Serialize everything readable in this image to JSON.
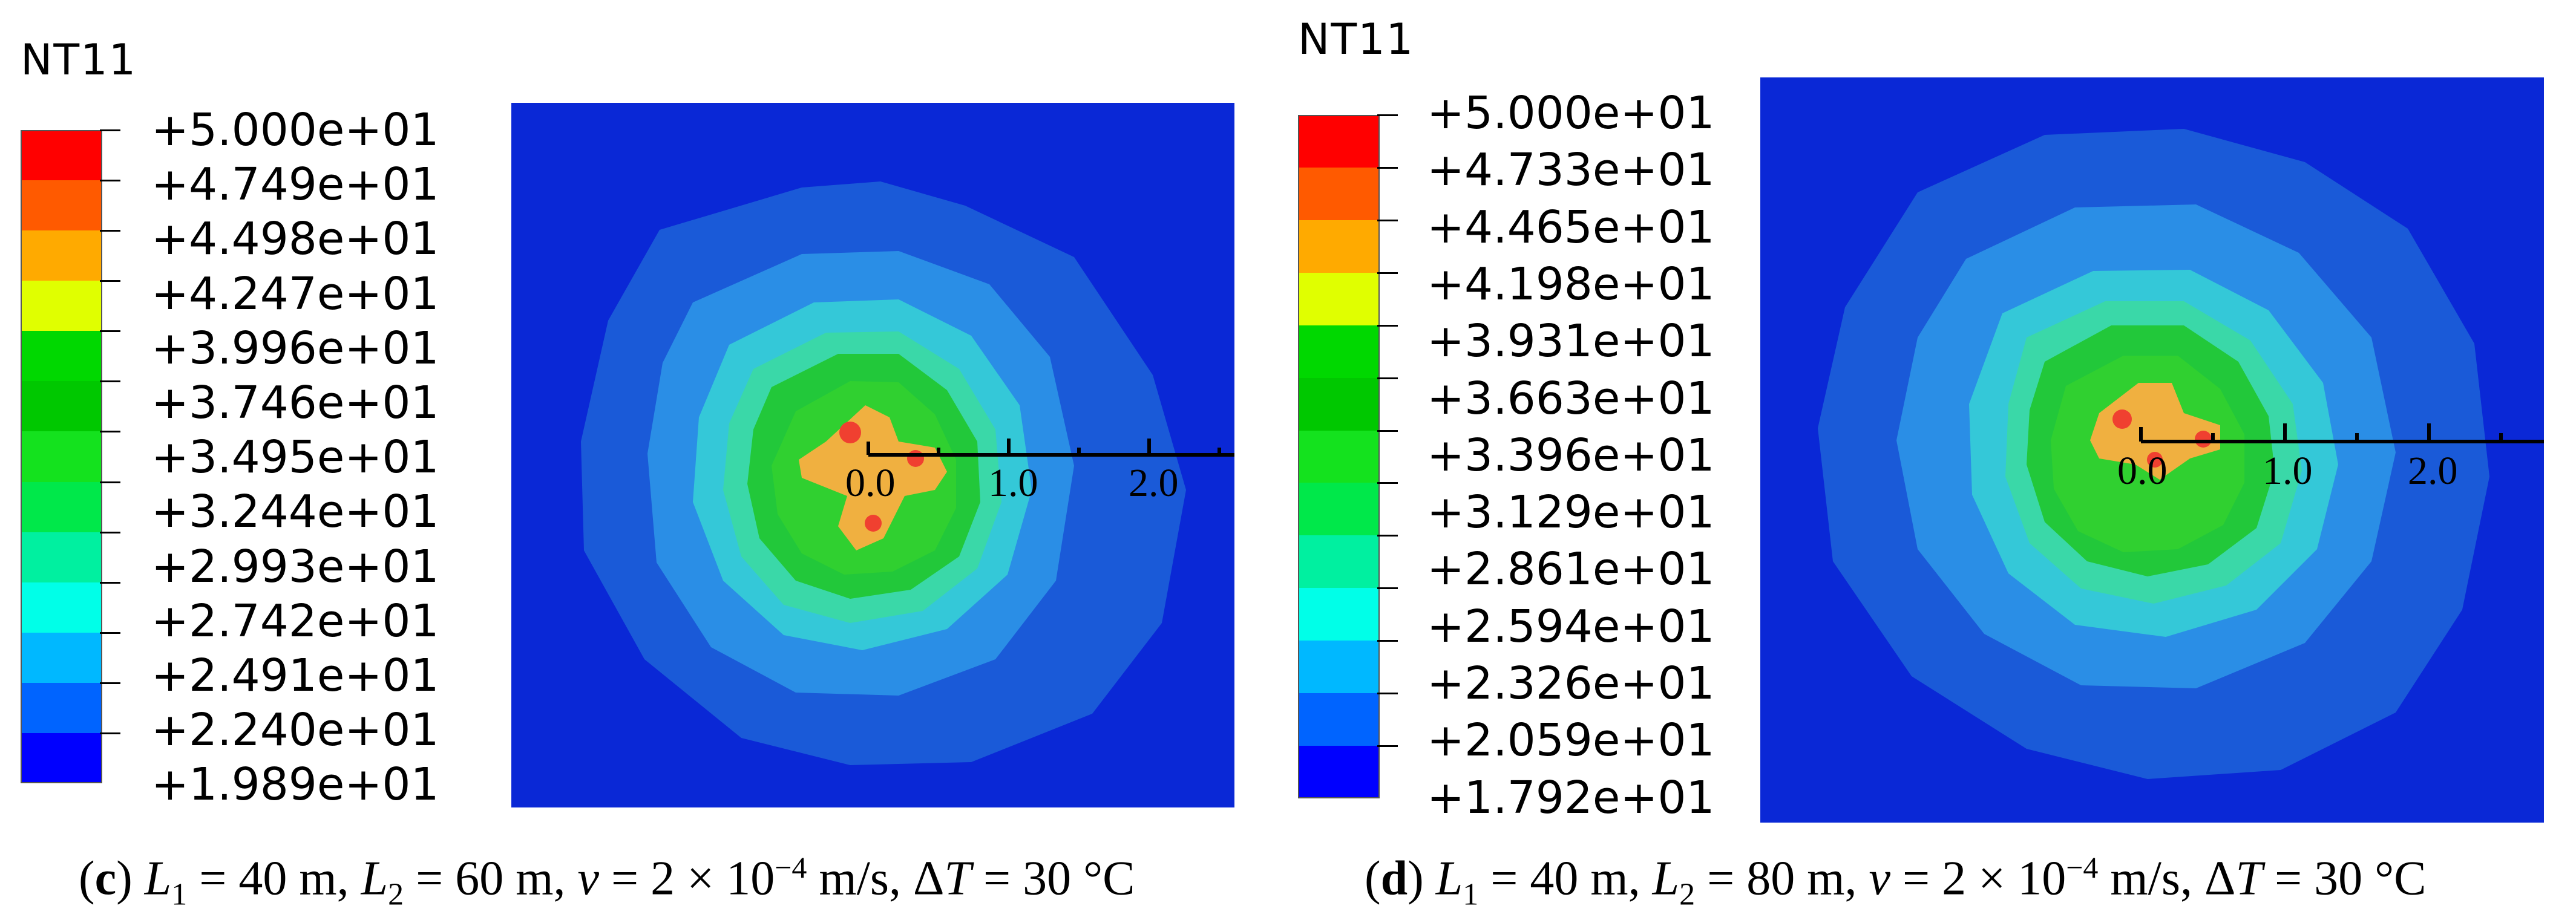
{
  "panels": [
    {
      "id": "c",
      "legend": {
        "title": "NT11",
        "colors": [
          "#ff0000",
          "#ff5a00",
          "#ffaa00",
          "#e0ff00",
          "#00d800",
          "#00c800",
          "#14e21e",
          "#00e84a",
          "#00f0a0",
          "#00ffe8",
          "#00b8ff",
          "#0064ff",
          "#0000ff"
        ],
        "levels": [
          "+5.000e+01",
          "+4.749e+01",
          "+4.498e+01",
          "+4.247e+01",
          "+3.996e+01",
          "+3.746e+01",
          "+3.495e+01",
          "+3.244e+01",
          "+2.993e+01",
          "+2.742e+01",
          "+2.491e+01",
          "+2.240e+01",
          "+1.989e+01"
        ]
      },
      "axis": {
        "ticks": [
          "0.0",
          "1.0",
          "2.0"
        ]
      },
      "caption": {
        "letter": "c",
        "L1_var": "L",
        "L1_sub": "1",
        "L1_text": " = 40 m, ",
        "L2_var": "L",
        "L2_sub": "2",
        "L2_text": " = 60 m, ",
        "v_var": "v",
        "v_text": " = 2 × 10",
        "v_exp": "−4",
        "v_unit": " m/s, Δ",
        "T_var": "T",
        "T_text": " = 30 °C"
      }
    },
    {
      "id": "d",
      "legend": {
        "title": "NT11",
        "colors": [
          "#ff0000",
          "#ff5a00",
          "#ffaa00",
          "#e0ff00",
          "#00d800",
          "#00c800",
          "#14e21e",
          "#00e84a",
          "#00f0a0",
          "#00ffe8",
          "#00b8ff",
          "#0064ff",
          "#0000ff"
        ],
        "levels": [
          "+5.000e+01",
          "+4.733e+01",
          "+4.465e+01",
          "+4.198e+01",
          "+3.931e+01",
          "+3.663e+01",
          "+3.396e+01",
          "+3.129e+01",
          "+2.861e+01",
          "+2.594e+01",
          "+2.326e+01",
          "+2.059e+01",
          "+1.792e+01"
        ]
      },
      "axis": {
        "ticks": [
          "0.0",
          "1.0",
          "2.0"
        ]
      },
      "caption": {
        "letter": "d",
        "L1_var": "L",
        "L1_sub": "1",
        "L1_text": " = 40 m, ",
        "L2_var": "L",
        "L2_sub": "2",
        "L2_text": " = 80 m, ",
        "v_var": "v",
        "v_text": " = 2 × 10",
        "v_exp": "−4",
        "v_unit": " m/s, Δ",
        "T_var": "T",
        "T_text": " = 30 °C"
      }
    }
  ]
}
